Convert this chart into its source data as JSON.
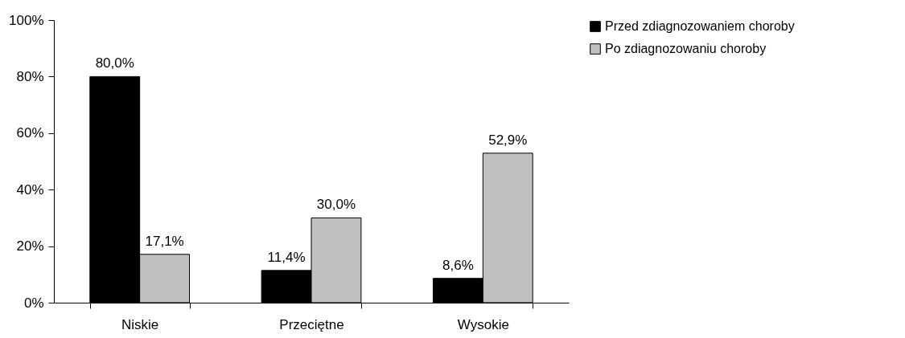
{
  "chart_data": {
    "type": "bar",
    "categories": [
      "Niskie",
      "Przeciętne",
      "Wysokie"
    ],
    "series": [
      {
        "name": "Przed zdiagnozowaniem choroby",
        "color": "#000000",
        "values": [
          80.0,
          11.4,
          8.6
        ],
        "value_labels": [
          "80,0%",
          "11,4%",
          "8,6%"
        ]
      },
      {
        "name": "Po zdiagnozowaniu choroby",
        "color": "#c0c0c0",
        "values": [
          17.1,
          30.0,
          52.9
        ],
        "value_labels": [
          "17,1%",
          "30,0%",
          "52,9%"
        ]
      }
    ],
    "ylim": [
      0,
      100
    ],
    "yticks": [
      {
        "value": 0,
        "label": "0%"
      },
      {
        "value": 20,
        "label": "20%"
      },
      {
        "value": 40,
        "label": "40%"
      },
      {
        "value": 60,
        "label": "60%"
      },
      {
        "value": 80,
        "label": "80%"
      },
      {
        "value": 100,
        "label": "100%"
      }
    ],
    "grid": false,
    "legend": "right"
  }
}
